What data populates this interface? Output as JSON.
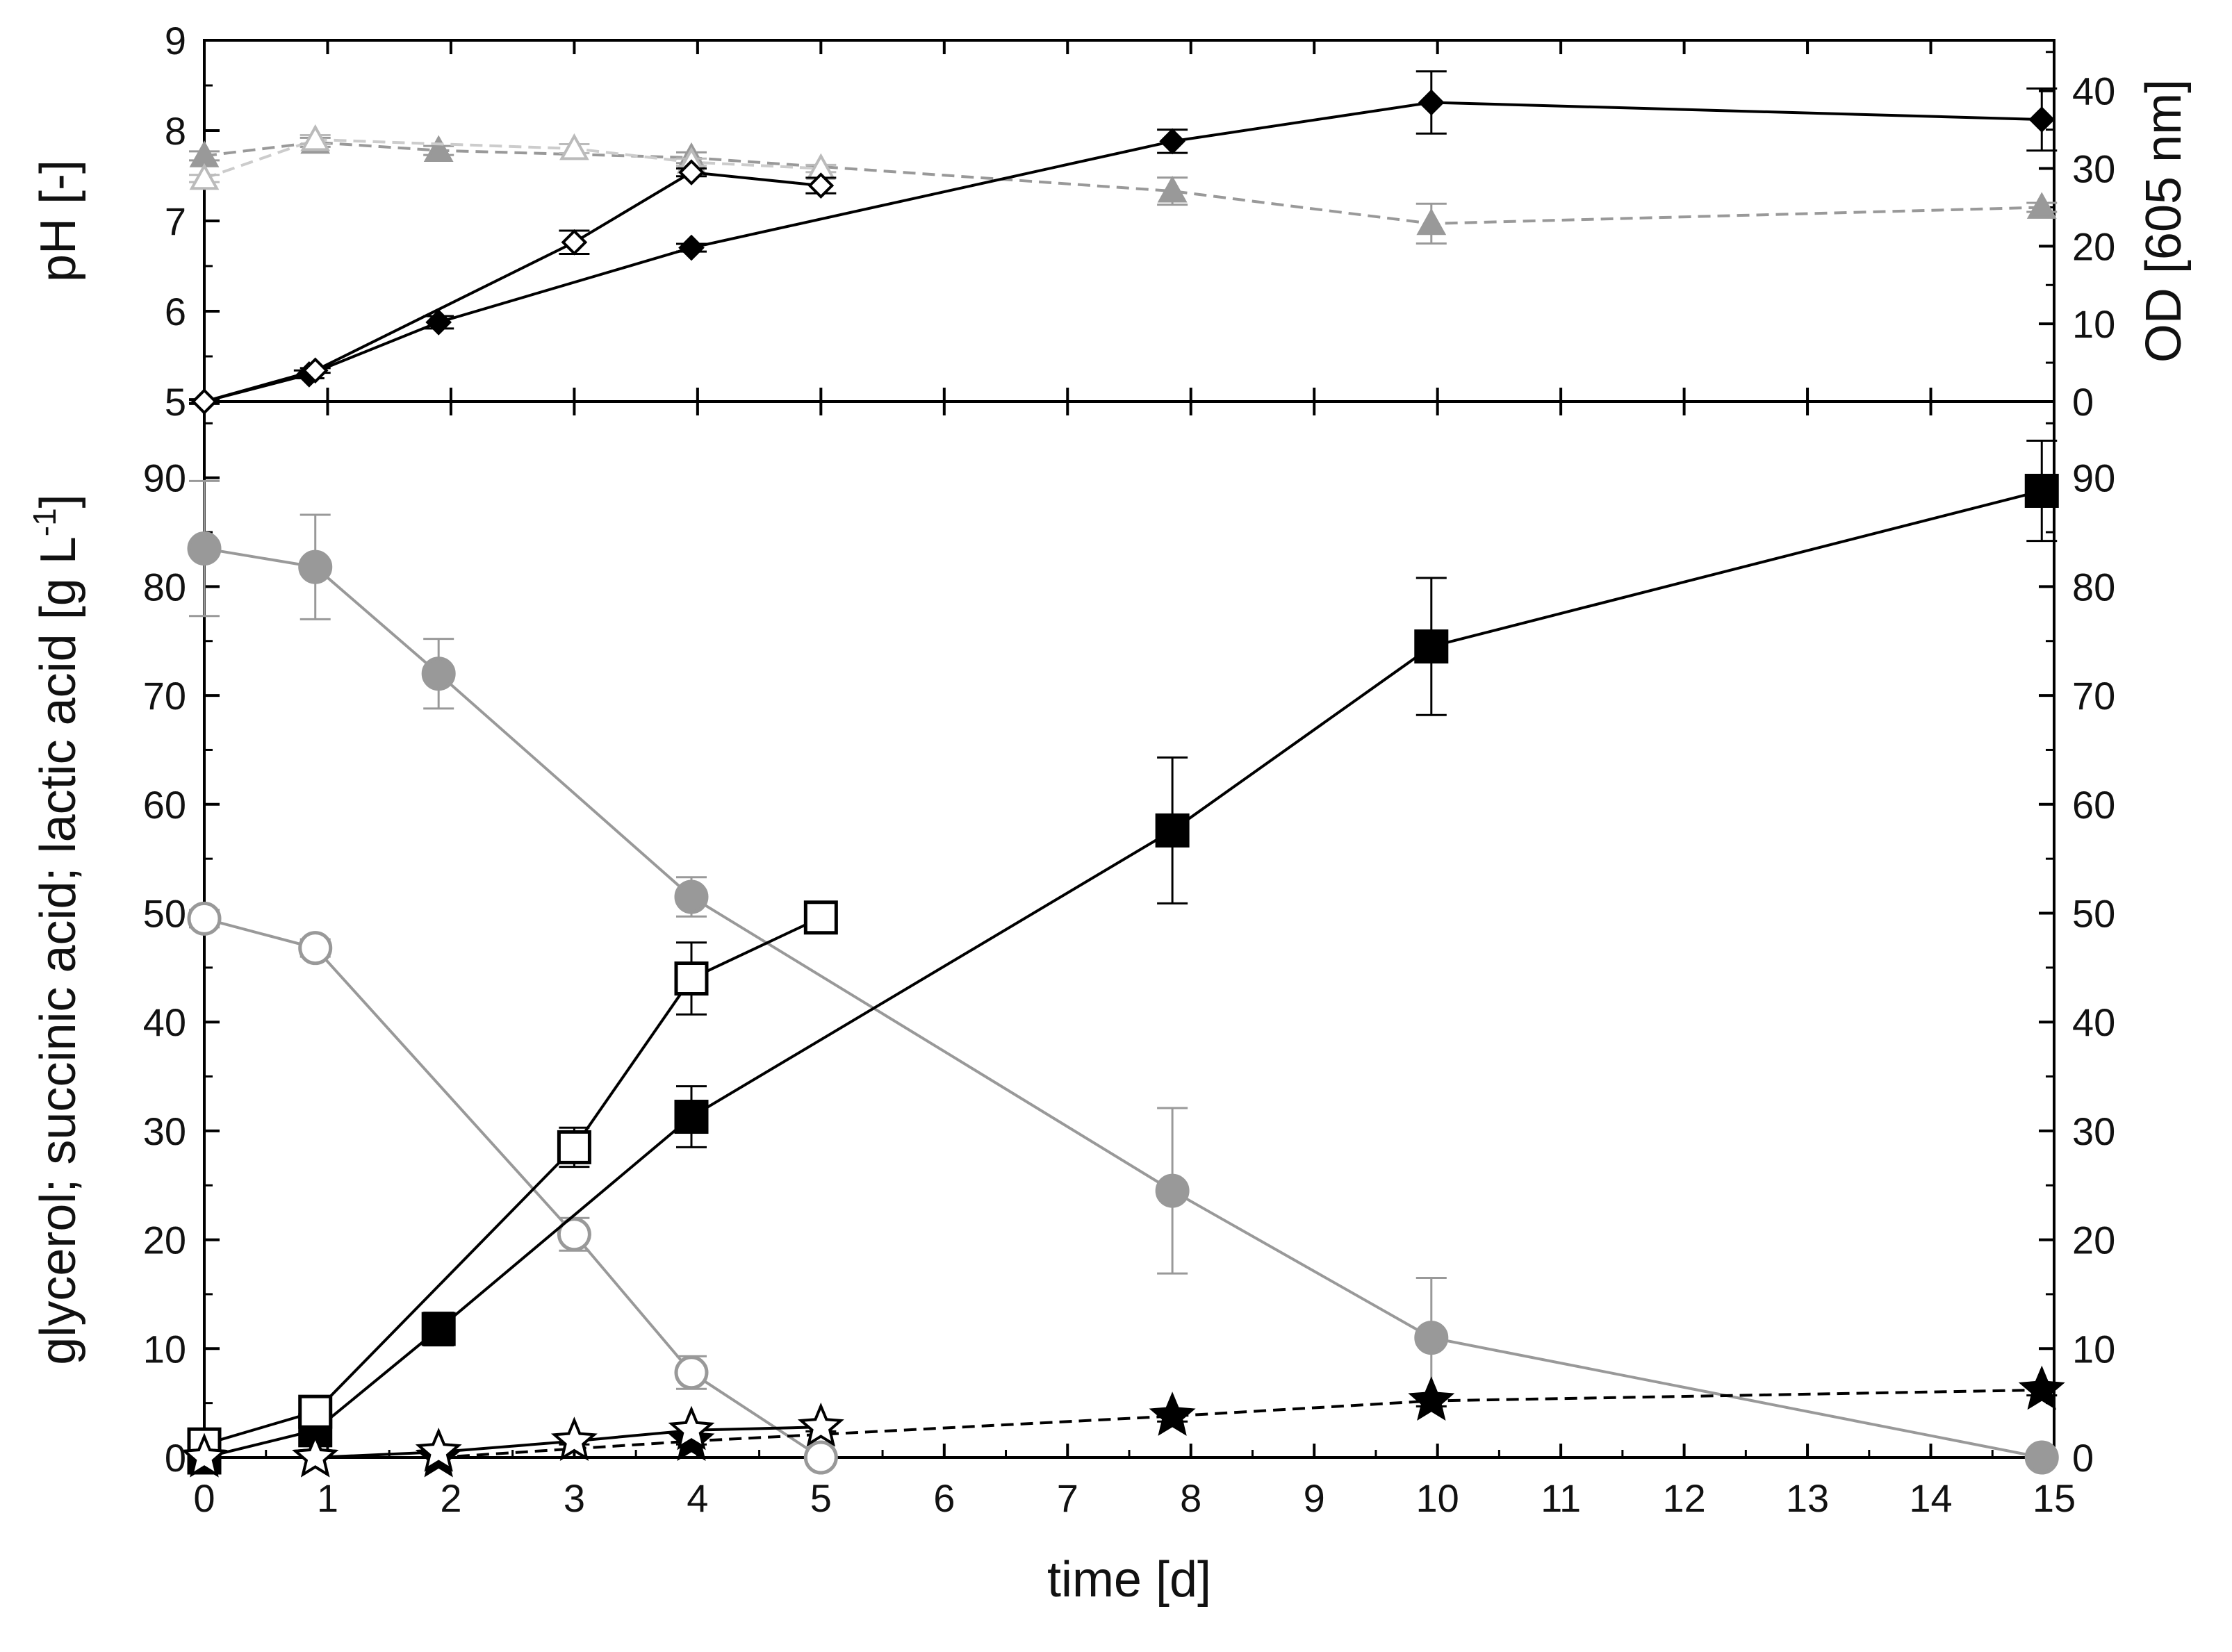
{
  "chart_data": [
    {
      "id": "top",
      "type": "line",
      "xlim": [
        0,
        15
      ],
      "ylabel_left": "pH [-]",
      "ylabel_right": "OD [605 nm]",
      "ylim_left": [
        5,
        9
      ],
      "ylim_right": [
        0,
        46.5
      ],
      "yticks_left": [
        5,
        6,
        7,
        8,
        9
      ],
      "yticks_right": [
        0,
        10,
        20,
        30,
        40
      ],
      "series": [
        {
          "name": "pH (filled triangles)",
          "axis": "left",
          "marker": "triangle",
          "fill": "#999999",
          "stroke": "#999999",
          "line": "#999999",
          "dash": true,
          "x": [
            0,
            0.9,
            1.9,
            3.95,
            7.85,
            9.95,
            14.9
          ],
          "y": [
            7.72,
            7.87,
            7.78,
            7.7,
            7.33,
            6.97,
            7.15
          ],
          "err": [
            0.05,
            0.05,
            0.05,
            0.06,
            0.15,
            0.22,
            0.05
          ]
        },
        {
          "name": "pH (open triangles)",
          "axis": "left",
          "marker": "triangle",
          "fill": "#ffffff",
          "stroke": "#bbbbbb",
          "line": "#cccccc",
          "dash": true,
          "x": [
            0,
            0.9,
            3.0,
            3.95,
            5.0
          ],
          "y": [
            7.47,
            7.9,
            7.8,
            7.65,
            7.58
          ],
          "err": [
            0.04,
            0.05,
            0.05,
            0.04,
            0.04
          ]
        },
        {
          "name": "OD (filled diamonds)",
          "axis": "right",
          "marker": "diamond",
          "fill": "#000000",
          "stroke": "#000000",
          "line": "#000000",
          "dash": false,
          "x": [
            0,
            0.85,
            1.9,
            3.95,
            7.85,
            9.95,
            14.9
          ],
          "y": [
            0,
            3.5,
            10.2,
            19.8,
            33.5,
            38.5,
            36.3
          ],
          "err": [
            0.3,
            0.5,
            0.8,
            0.5,
            1.5,
            4,
            4
          ]
        },
        {
          "name": "OD (open diamonds)",
          "axis": "right",
          "marker": "diamond",
          "fill": "#ffffff",
          "stroke": "#000000",
          "line": "#000000",
          "dash": false,
          "x": [
            0,
            0.9,
            3.0,
            3.95,
            5.0
          ],
          "y": [
            0,
            4.0,
            20.5,
            29.5,
            27.8
          ],
          "err": [
            0.2,
            0.3,
            1.5,
            0.5,
            1.0
          ]
        }
      ]
    },
    {
      "id": "bottom",
      "type": "line",
      "xlabel": "time [d]",
      "ylabel": "glycerol; succinic acid; lactic acid [g L",
      "ylabel_sup": "-1",
      "ylabel_end": "]",
      "xlim": [
        0,
        15
      ],
      "ylim": [
        0,
        97
      ],
      "xticks": [
        0,
        1,
        2,
        3,
        4,
        5,
        6,
        7,
        8,
        9,
        10,
        11,
        12,
        13,
        14,
        15
      ],
      "yticks": [
        0,
        10,
        20,
        30,
        40,
        50,
        60,
        70,
        80,
        90
      ],
      "series": [
        {
          "name": "glycerol (filled circles)",
          "marker": "circle",
          "fill": "#999999",
          "stroke": "#999999",
          "line": "#999999",
          "dash": false,
          "x": [
            0,
            0.9,
            1.9,
            3.95,
            7.85,
            9.95,
            14.9
          ],
          "y": [
            83.5,
            81.8,
            72.0,
            51.5,
            24.5,
            11.0,
            0.0
          ],
          "err": [
            6.2,
            4.8,
            3.2,
            1.8,
            7.6,
            5.5,
            0.2
          ]
        },
        {
          "name": "glycerol (open circles)",
          "marker": "circle",
          "fill": "#ffffff",
          "stroke": "#999999",
          "line": "#999999",
          "dash": false,
          "x": [
            0,
            0.9,
            3.0,
            3.95,
            5.0
          ],
          "y": [
            49.5,
            46.8,
            20.5,
            7.8,
            0.0
          ],
          "err": [
            0.8,
            0.8,
            1.5,
            1.5,
            0.2
          ]
        },
        {
          "name": "succinic acid (filled squares)",
          "marker": "square",
          "fill": "#000000",
          "stroke": "#000000",
          "line": "#000000",
          "dash": false,
          "x": [
            0,
            0.9,
            1.9,
            3.95,
            7.85,
            9.95,
            14.9
          ],
          "y": [
            0,
            2.5,
            11.8,
            31.3,
            57.6,
            74.5,
            88.8
          ],
          "err": [
            0.5,
            1.0,
            1.5,
            2.8,
            6.7,
            6.3,
            4.6
          ]
        },
        {
          "name": "succinic acid (open squares)",
          "marker": "square",
          "fill": "#ffffff",
          "stroke": "#000000",
          "line": "#000000",
          "dash": false,
          "x": [
            0,
            0.9,
            3.0,
            3.95,
            5.0
          ],
          "y": [
            1.2,
            4.2,
            28.5,
            44.0,
            49.6
          ],
          "err": [
            0.4,
            0.8,
            1.8,
            3.3,
            0.8
          ]
        },
        {
          "name": "lactic acid (filled stars)",
          "marker": "star",
          "fill": "#000000",
          "stroke": "#000000",
          "line": "#000000",
          "dash": true,
          "x": [
            0,
            0.9,
            1.9,
            3.95,
            7.85,
            9.95,
            14.9
          ],
          "y": [
            0,
            0,
            0,
            1.5,
            3.8,
            5.2,
            6.2
          ],
          "err": [
            0,
            0,
            0,
            0.3,
            0.5,
            0.5,
            0.5
          ]
        },
        {
          "name": "lactic acid (open stars)",
          "marker": "star",
          "fill": "#ffffff",
          "stroke": "#000000",
          "line": "#000000",
          "dash": false,
          "x": [
            0,
            0.9,
            1.9,
            3.0,
            3.95,
            5.0
          ],
          "y": [
            0,
            0,
            0.5,
            1.5,
            2.5,
            2.8
          ],
          "err": [
            0,
            0,
            0,
            0.3,
            0.4,
            0.4
          ]
        }
      ]
    }
  ]
}
